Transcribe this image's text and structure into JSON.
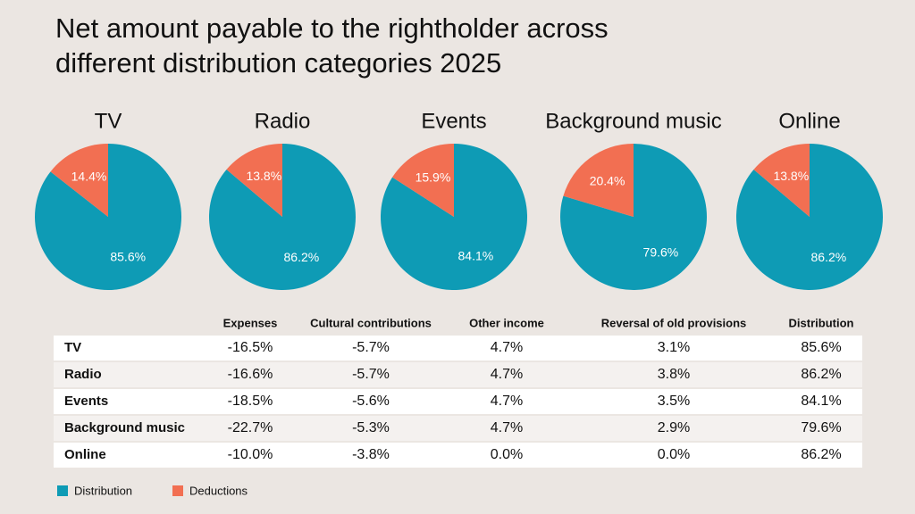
{
  "title": "Net amount payable to the rightholder across different distribution categories 2025",
  "chart_data": [
    {
      "type": "pie",
      "title": "TV",
      "categories": [
        "Distribution",
        "Deductions"
      ],
      "values": [
        85.6,
        14.4
      ],
      "value_labels": [
        "85.6%",
        "14.4%"
      ],
      "colors": [
        "#0e9bb5",
        "#f26f52"
      ]
    },
    {
      "type": "pie",
      "title": "Radio",
      "categories": [
        "Distribution",
        "Deductions"
      ],
      "values": [
        86.2,
        13.8
      ],
      "value_labels": [
        "86.2%",
        "13.8%"
      ],
      "colors": [
        "#0e9bb5",
        "#f26f52"
      ]
    },
    {
      "type": "pie",
      "title": "Events",
      "categories": [
        "Distribution",
        "Deductions"
      ],
      "values": [
        84.1,
        15.9
      ],
      "value_labels": [
        "84.1%",
        "15.9%"
      ],
      "colors": [
        "#0e9bb5",
        "#f26f52"
      ]
    },
    {
      "type": "pie",
      "title": "Background music",
      "categories": [
        "Distribution",
        "Deductions"
      ],
      "values": [
        79.6,
        20.4
      ],
      "value_labels": [
        "79.6%",
        "20.4%"
      ],
      "colors": [
        "#0e9bb5",
        "#f26f52"
      ]
    },
    {
      "type": "pie",
      "title": "Online",
      "categories": [
        "Distribution",
        "Deductions"
      ],
      "values": [
        86.2,
        13.8
      ],
      "value_labels": [
        "86.2%",
        "13.8%"
      ],
      "colors": [
        "#0e9bb5",
        "#f26f52"
      ]
    }
  ],
  "table": {
    "columns": [
      "Expenses",
      "Cultural contributions",
      "Other income",
      "Reversal of old provisions",
      "Distribution"
    ],
    "rows": [
      {
        "label": "TV",
        "cells": [
          "-16.5%",
          "-5.7%",
          "4.7%",
          "3.1%",
          "85.6%"
        ]
      },
      {
        "label": "Radio",
        "cells": [
          "-16.6%",
          "-5.7%",
          "4.7%",
          "3.8%",
          "86.2%"
        ]
      },
      {
        "label": "Events",
        "cells": [
          "-18.5%",
          "-5.6%",
          "4.7%",
          "3.5%",
          "84.1%"
        ]
      },
      {
        "label": "Background music",
        "cells": [
          "-22.7%",
          "-5.3%",
          "4.7%",
          "2.9%",
          "79.6%"
        ]
      },
      {
        "label": "Online",
        "cells": [
          "-10.0%",
          "-3.8%",
          "0.0%",
          "0.0%",
          "86.2%"
        ]
      }
    ]
  }
}
